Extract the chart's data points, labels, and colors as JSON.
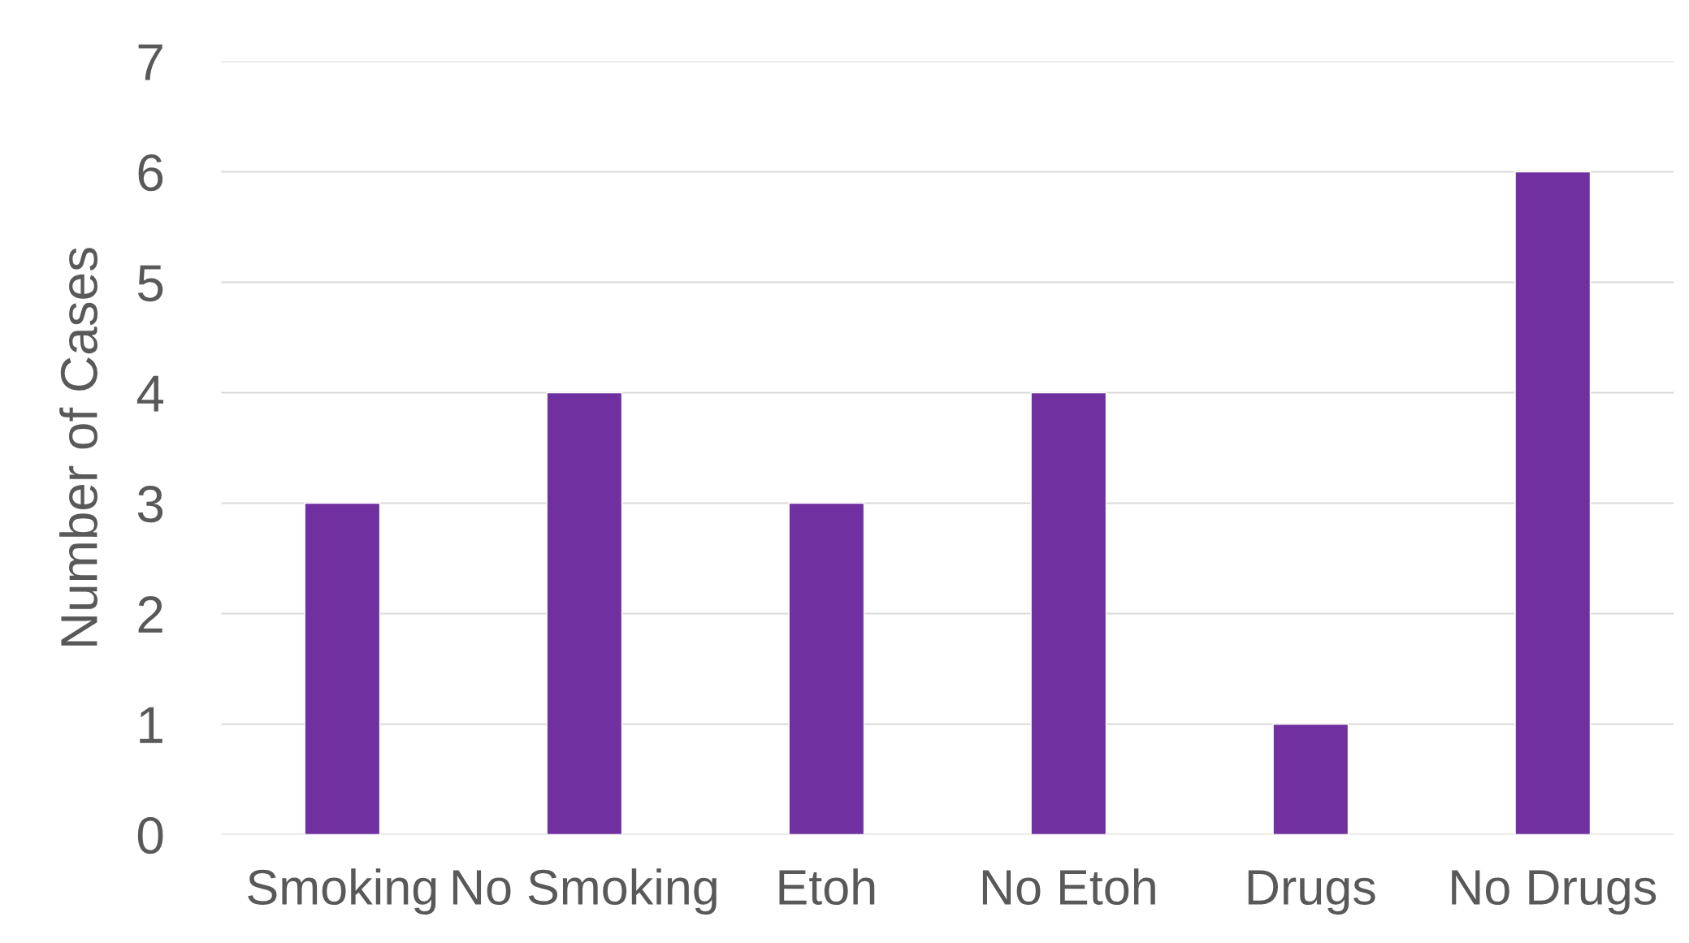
{
  "chart_data": {
    "type": "bar",
    "ylabel": "Number of Cases",
    "categories": [
      "Smoking",
      "No Smoking",
      "Etoh",
      "No Etoh",
      "Drugs",
      "No Drugs"
    ],
    "values": [
      3,
      4,
      3,
      4,
      1,
      6
    ],
    "color": "#7030a0",
    "ylim": [
      0,
      7
    ],
    "yticks": [
      0,
      1,
      2,
      3,
      4,
      5,
      6,
      7
    ],
    "grid": "y",
    "legend": false
  }
}
